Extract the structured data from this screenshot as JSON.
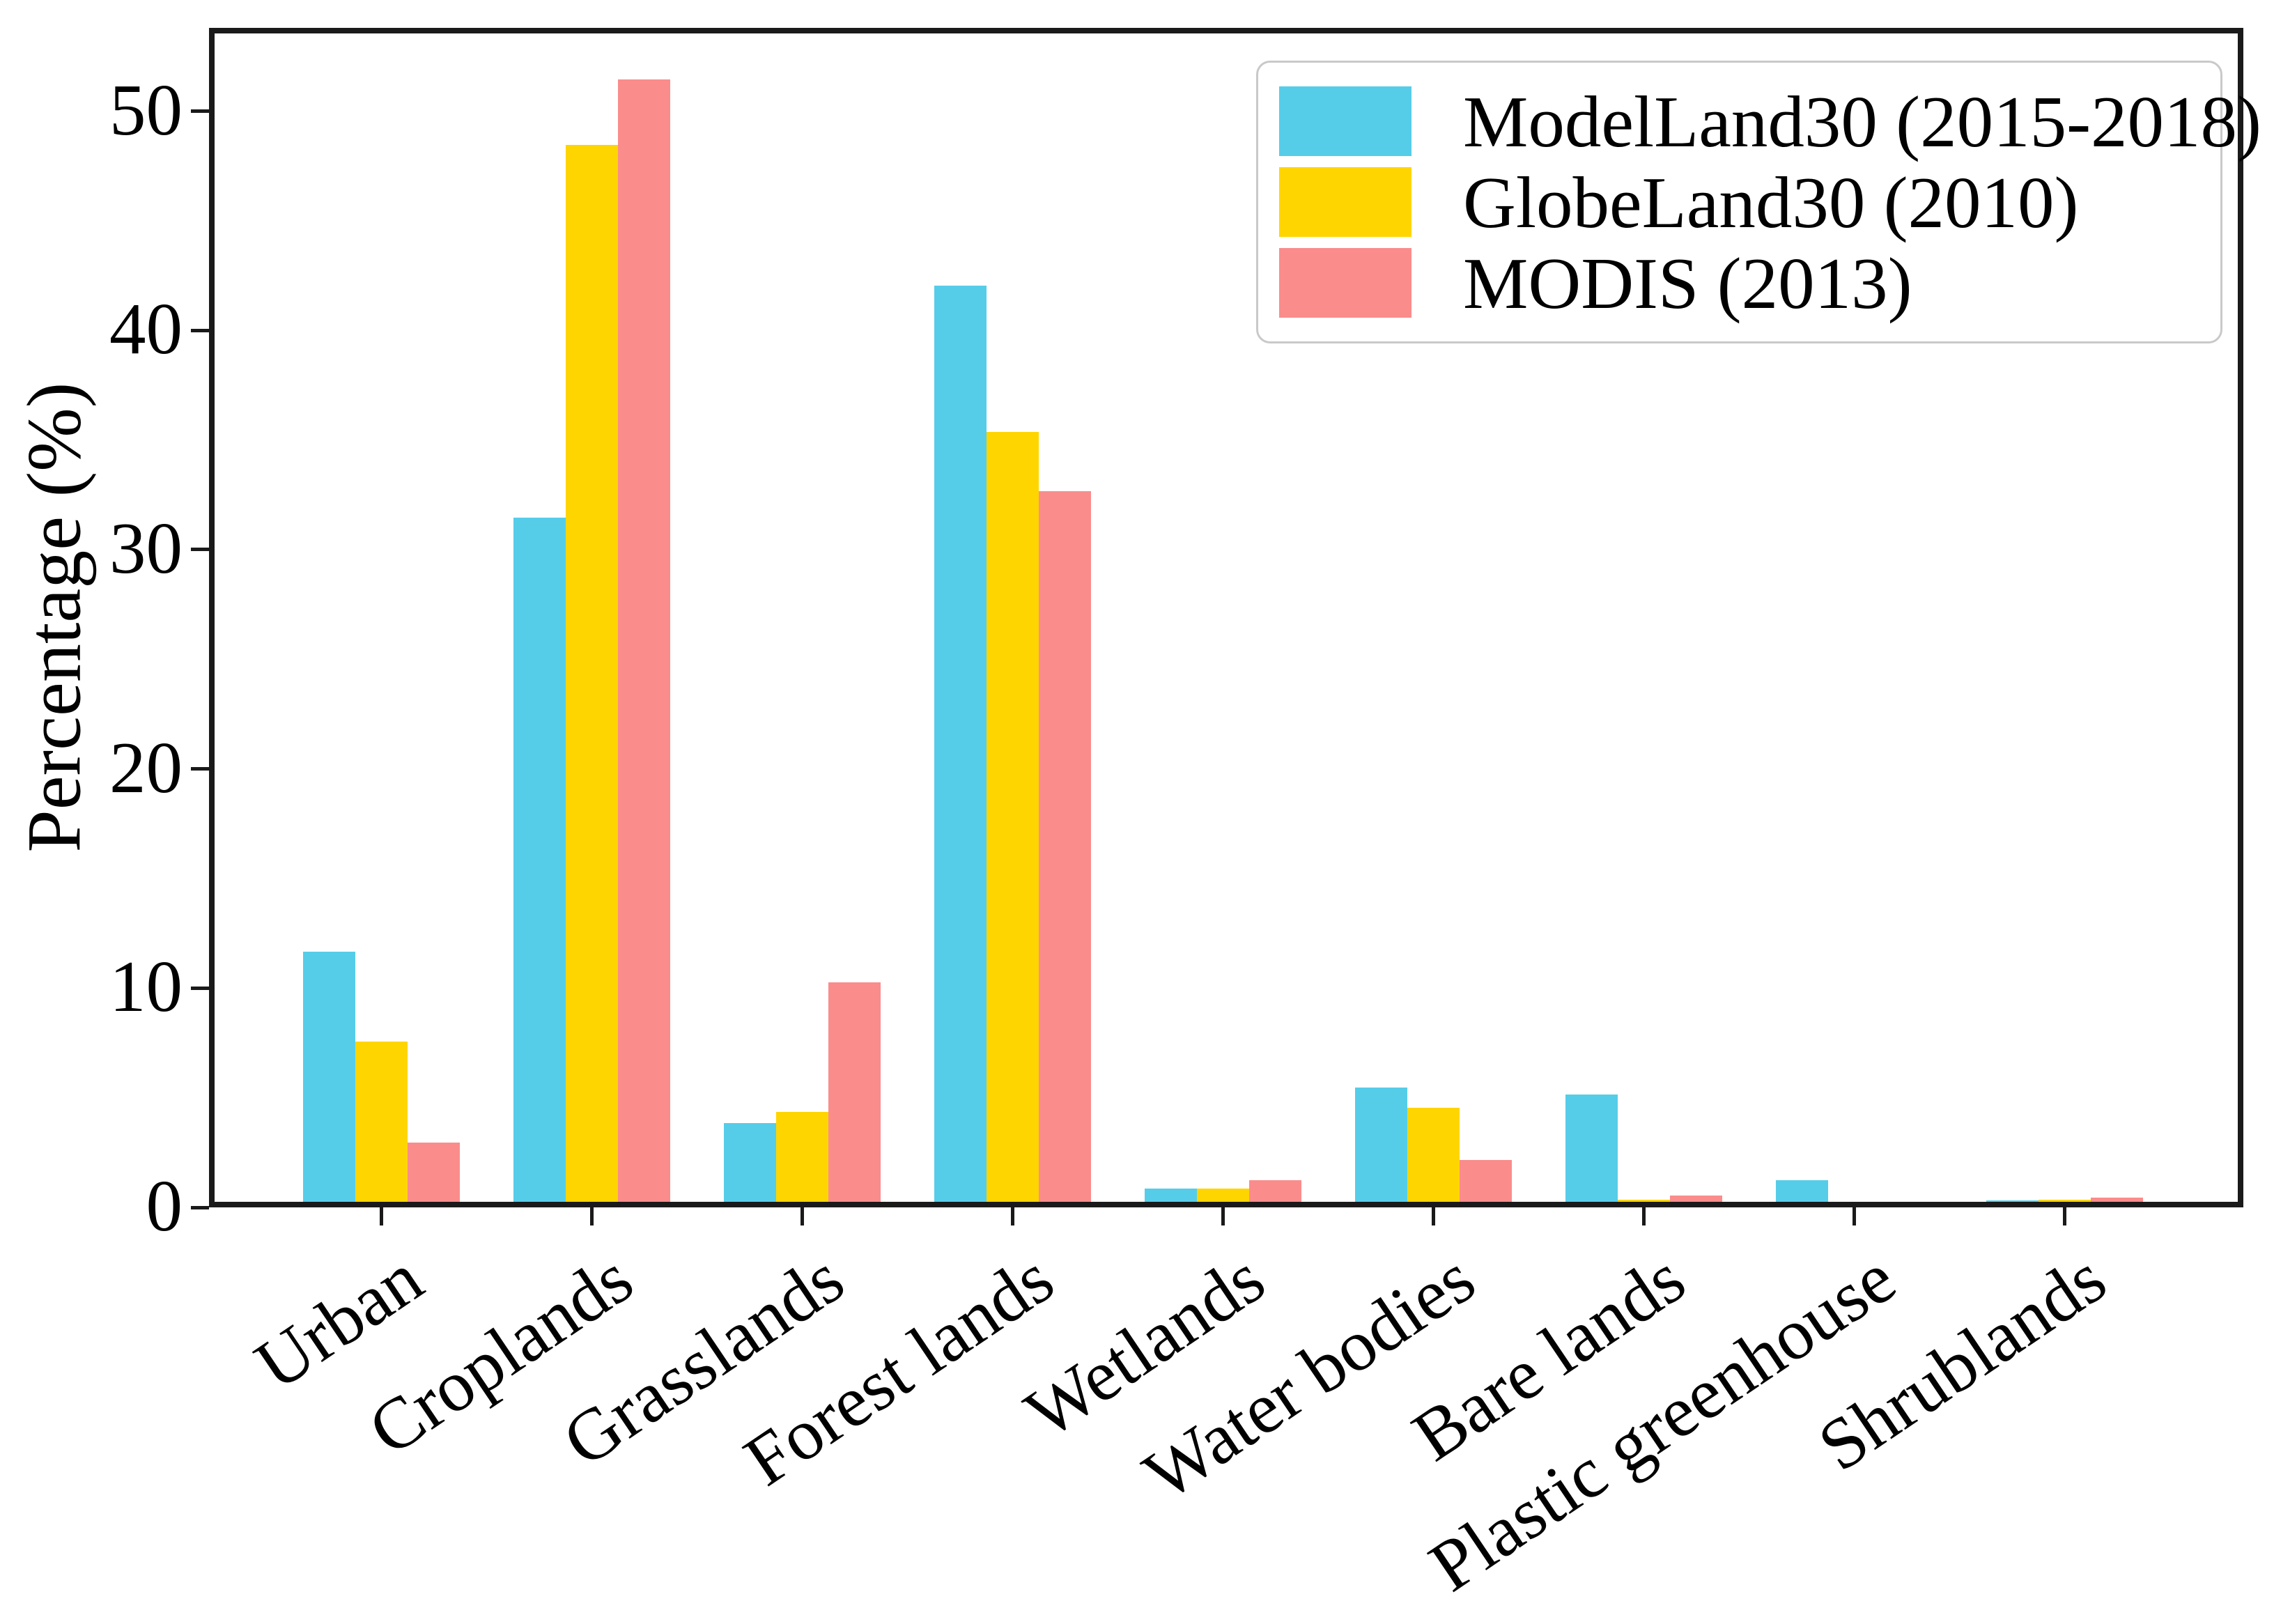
{
  "chart_data": {
    "type": "bar",
    "title": "",
    "xlabel": "",
    "ylabel": "Percentage (%)",
    "categories": [
      "Urban",
      "Croplands",
      "Grasslands",
      "Forest lands",
      "Wetlands",
      "Water bodies",
      "Bare lands",
      "Plastic greenhouse",
      "Shrublands"
    ],
    "series": [
      {
        "name": "ModelLand30 (2015-2018)",
        "color": "#55CDE9",
        "values": [
          11.4,
          31.2,
          3.6,
          41.8,
          0.6,
          5.2,
          4.9,
          1.0,
          0.05
        ]
      },
      {
        "name": "GlobeLand30 (2010)",
        "color": "#FFD500",
        "values": [
          7.3,
          48.2,
          4.1,
          35.1,
          0.6,
          4.3,
          0.1,
          0.0,
          0.1
        ]
      },
      {
        "name": "MODIS (2013)",
        "color": "#FA8C8C",
        "values": [
          2.7,
          51.2,
          10.0,
          32.4,
          1.0,
          1.9,
          0.3,
          0.0,
          0.2
        ]
      }
    ],
    "yticks": [
      0,
      10,
      20,
      30,
      40,
      50
    ],
    "ylim": [
      0,
      53.8
    ],
    "grid": false,
    "legend_position": "upper right",
    "axis_color": "#1a1a1a",
    "background_color": "#ffffff"
  }
}
